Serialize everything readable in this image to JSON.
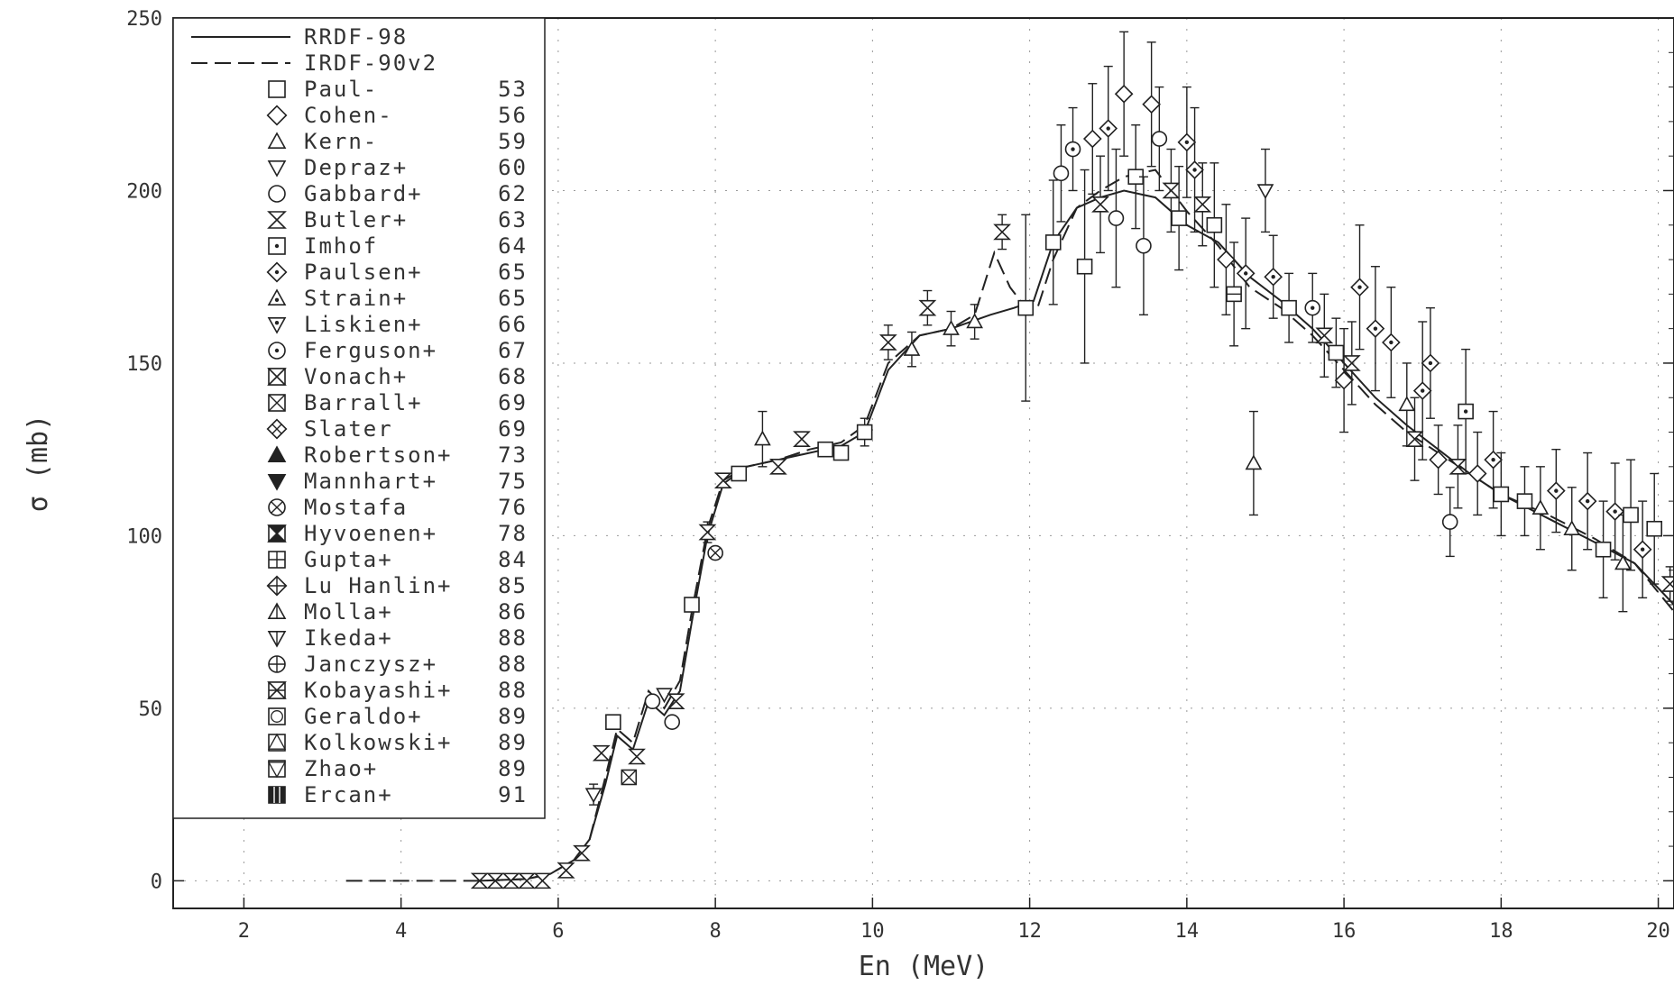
{
  "chart_data": {
    "type": "scatter",
    "xlabel": "En (MeV)",
    "ylabel": "σ (mb)",
    "xlim": [
      1.1,
      20.2
    ],
    "ylim": [
      -8,
      250
    ],
    "x_ticks": [
      2,
      4,
      6,
      8,
      10,
      12,
      14,
      16,
      18,
      20
    ],
    "y_ticks": [
      0,
      50,
      100,
      150,
      200,
      250
    ],
    "x_tick_labels": [
      "2",
      "4",
      "6",
      "8",
      "10",
      "12",
      "14",
      "16",
      "18",
      "20"
    ],
    "y_tick_labels": [
      "0",
      "50",
      "100",
      "150",
      "200",
      "250"
    ],
    "grid": "dotted",
    "legend_position": "top-left",
    "curves": [
      {
        "name": "RRDF-98",
        "style": "solid",
        "x": [
          5.0,
          5.6,
          5.9,
          6.2,
          6.4,
          6.6,
          6.75,
          6.95,
          7.15,
          7.35,
          7.55,
          7.7,
          7.9,
          8.1,
          8.4,
          8.8,
          9.2,
          9.6,
          9.9,
          10.2,
          10.6,
          11.0,
          11.5,
          11.8,
          12.05,
          12.3,
          12.6,
          12.9,
          13.2,
          13.6,
          14.0,
          14.4,
          14.8,
          15.2,
          15.6,
          16.0,
          16.4,
          16.8,
          17.2,
          17.6,
          18.0,
          18.6,
          19.2,
          19.7,
          20.2
        ],
        "y": [
          0,
          0.5,
          2,
          6,
          12,
          28,
          42,
          38,
          52,
          48,
          55,
          75,
          100,
          115,
          120,
          122,
          124,
          126,
          130,
          148,
          158,
          160,
          164,
          166,
          168,
          185,
          195,
          198,
          200,
          198,
          190,
          185,
          175,
          168,
          160,
          150,
          140,
          132,
          125,
          118,
          112,
          105,
          98,
          92,
          80
        ]
      },
      {
        "name": "IRDF-90v2",
        "style": "dashed",
        "x": [
          3.3,
          5.0,
          5.6,
          5.9,
          6.2,
          6.4,
          6.6,
          6.75,
          6.95,
          7.15,
          7.35,
          7.55,
          7.7,
          7.9,
          8.1,
          8.4,
          8.8,
          9.2,
          9.6,
          9.9,
          10.2,
          10.6,
          11.0,
          11.3,
          11.55,
          11.75,
          11.95,
          12.1,
          12.3,
          12.6,
          12.9,
          13.2,
          13.6,
          14.0,
          14.4,
          14.8,
          15.2,
          15.6,
          16.0,
          16.4,
          16.8,
          17.2,
          17.6,
          18.0,
          18.6,
          19.2,
          19.7,
          20.2
        ],
        "y": [
          0,
          0,
          0.5,
          2,
          6,
          12,
          30,
          44,
          40,
          55,
          50,
          58,
          78,
          102,
          116,
          120,
          122,
          125,
          127,
          132,
          150,
          158,
          160,
          164,
          182,
          172,
          166,
          166,
          180,
          195,
          200,
          204,
          206,
          194,
          184,
          172,
          166,
          158,
          148,
          138,
          130,
          124,
          118,
          112,
          106,
          99,
          92,
          78
        ]
      }
    ],
    "markers": [
      {
        "x": 5.0,
        "y": 0,
        "symbol": "bowtie"
      },
      {
        "x": 5.2,
        "y": 0,
        "symbol": "bowtie"
      },
      {
        "x": 5.4,
        "y": 0,
        "symbol": "bowtie"
      },
      {
        "x": 5.6,
        "y": 0,
        "symbol": "bowtie"
      },
      {
        "x": 5.8,
        "y": 0,
        "symbol": "bowtie"
      },
      {
        "x": 6.1,
        "y": 3,
        "symbol": "bowtie"
      },
      {
        "x": 6.3,
        "y": 8,
        "symbol": "bowtie"
      },
      {
        "x": 6.45,
        "y": 25,
        "symbol": "triangle-down",
        "err": 3
      },
      {
        "x": 6.55,
        "y": 37,
        "symbol": "bowtie"
      },
      {
        "x": 6.7,
        "y": 46,
        "symbol": "square"
      },
      {
        "x": 6.9,
        "y": 30,
        "symbol": "square-cross"
      },
      {
        "x": 7.0,
        "y": 36,
        "symbol": "bowtie"
      },
      {
        "x": 7.2,
        "y": 52,
        "symbol": "circle"
      },
      {
        "x": 7.35,
        "y": 54,
        "symbol": "triangle-down"
      },
      {
        "x": 7.45,
        "y": 46,
        "symbol": "circle"
      },
      {
        "x": 7.5,
        "y": 52,
        "symbol": "bowtie"
      },
      {
        "x": 7.7,
        "y": 80,
        "symbol": "square"
      },
      {
        "x": 7.9,
        "y": 101,
        "symbol": "bowtie",
        "err": 3
      },
      {
        "x": 8.0,
        "y": 95,
        "symbol": "circle-cross"
      },
      {
        "x": 8.1,
        "y": 116,
        "symbol": "bowtie"
      },
      {
        "x": 8.3,
        "y": 118,
        "symbol": "square"
      },
      {
        "x": 8.6,
        "y": 128,
        "symbol": "triangle",
        "err": 8
      },
      {
        "x": 8.8,
        "y": 120,
        "symbol": "bowtie"
      },
      {
        "x": 9.1,
        "y": 128,
        "symbol": "bowtie"
      },
      {
        "x": 9.4,
        "y": 125,
        "symbol": "square"
      },
      {
        "x": 9.6,
        "y": 124,
        "symbol": "square"
      },
      {
        "x": 9.9,
        "y": 130,
        "symbol": "square",
        "err": 4
      },
      {
        "x": 10.2,
        "y": 156,
        "symbol": "bowtie",
        "err": 5
      },
      {
        "x": 10.5,
        "y": 154,
        "symbol": "triangle",
        "err": 5
      },
      {
        "x": 10.7,
        "y": 166,
        "symbol": "bowtie",
        "err": 5
      },
      {
        "x": 11.0,
        "y": 160,
        "symbol": "triangle",
        "err": 5
      },
      {
        "x": 11.3,
        "y": 162,
        "symbol": "triangle",
        "err": 5
      },
      {
        "x": 11.65,
        "y": 188,
        "symbol": "bowtie",
        "err": 5
      },
      {
        "x": 11.95,
        "y": 166,
        "symbol": "square",
        "err": 27
      },
      {
        "x": 12.3,
        "y": 185,
        "symbol": "square",
        "err": 18
      },
      {
        "x": 12.4,
        "y": 205,
        "symbol": "circle",
        "err": 14
      },
      {
        "x": 12.55,
        "y": 212,
        "symbol": "circle-dot",
        "err": 12
      },
      {
        "x": 12.7,
        "y": 178,
        "symbol": "square",
        "err": 28
      },
      {
        "x": 12.8,
        "y": 215,
        "symbol": "diamond",
        "err": 16
      },
      {
        "x": 12.9,
        "y": 196,
        "symbol": "bowtie",
        "err": 14
      },
      {
        "x": 13.0,
        "y": 218,
        "symbol": "diamond-dot",
        "err": 18
      },
      {
        "x": 13.1,
        "y": 192,
        "symbol": "circle",
        "err": 20
      },
      {
        "x": 13.2,
        "y": 228,
        "symbol": "diamond",
        "err": 18
      },
      {
        "x": 13.35,
        "y": 204,
        "symbol": "square",
        "err": 15
      },
      {
        "x": 13.45,
        "y": 184,
        "symbol": "circle",
        "err": 20
      },
      {
        "x": 13.55,
        "y": 225,
        "symbol": "diamond",
        "err": 18
      },
      {
        "x": 13.65,
        "y": 215,
        "symbol": "circle",
        "err": 15
      },
      {
        "x": 13.8,
        "y": 200,
        "symbol": "bowtie",
        "err": 12
      },
      {
        "x": 13.9,
        "y": 192,
        "symbol": "square",
        "err": 15
      },
      {
        "x": 14.0,
        "y": 214,
        "symbol": "diamond-dot",
        "err": 16
      },
      {
        "x": 14.1,
        "y": 206,
        "symbol": "diamond-dot",
        "err": 18
      },
      {
        "x": 14.2,
        "y": 196,
        "symbol": "bowtie",
        "err": 12
      },
      {
        "x": 14.35,
        "y": 190,
        "symbol": "square",
        "err": 18
      },
      {
        "x": 14.5,
        "y": 180,
        "symbol": "diamond",
        "err": 16
      },
      {
        "x": 14.6,
        "y": 170,
        "symbol": "square-dash",
        "err": 15
      },
      {
        "x": 14.75,
        "y": 176,
        "symbol": "diamond-dot",
        "err": 16
      },
      {
        "x": 14.85,
        "y": 121,
        "symbol": "triangle",
        "err": 15
      },
      {
        "x": 15.0,
        "y": 200,
        "symbol": "triangle-down",
        "err": 12
      },
      {
        "x": 15.1,
        "y": 175,
        "symbol": "diamond-dot",
        "err": 12
      },
      {
        "x": 15.3,
        "y": 166,
        "symbol": "square",
        "err": 10
      },
      {
        "x": 15.6,
        "y": 166,
        "symbol": "circle-dot",
        "err": 10
      },
      {
        "x": 15.75,
        "y": 158,
        "symbol": "bowtie",
        "err": 12
      },
      {
        "x": 15.9,
        "y": 153,
        "symbol": "square",
        "err": 10
      },
      {
        "x": 16.0,
        "y": 145,
        "symbol": "diamond",
        "err": 15
      },
      {
        "x": 16.1,
        "y": 150,
        "symbol": "bowtie",
        "err": 12
      },
      {
        "x": 16.2,
        "y": 172,
        "symbol": "diamond-dot",
        "err": 18
      },
      {
        "x": 16.4,
        "y": 160,
        "symbol": "diamond-dot",
        "err": 18
      },
      {
        "x": 16.6,
        "y": 156,
        "symbol": "diamond-dot",
        "err": 16
      },
      {
        "x": 16.8,
        "y": 138,
        "symbol": "triangle",
        "err": 12
      },
      {
        "x": 16.9,
        "y": 128,
        "symbol": "bowtie",
        "err": 12
      },
      {
        "x": 17.0,
        "y": 142,
        "symbol": "diamond-dot",
        "err": 20
      },
      {
        "x": 17.1,
        "y": 150,
        "symbol": "diamond-dot",
        "err": 16
      },
      {
        "x": 17.2,
        "y": 122,
        "symbol": "diamond",
        "err": 10
      },
      {
        "x": 17.35,
        "y": 104,
        "symbol": "circle",
        "err": 10
      },
      {
        "x": 17.45,
        "y": 120,
        "symbol": "bowtie",
        "err": 12
      },
      {
        "x": 17.55,
        "y": 136,
        "symbol": "square-dot",
        "err": 18
      },
      {
        "x": 17.7,
        "y": 118,
        "symbol": "diamond",
        "err": 12
      },
      {
        "x": 17.9,
        "y": 122,
        "symbol": "diamond-dot",
        "err": 14
      },
      {
        "x": 18.0,
        "y": 112,
        "symbol": "square",
        "err": 12
      },
      {
        "x": 18.3,
        "y": 110,
        "symbol": "square",
        "err": 10
      },
      {
        "x": 18.5,
        "y": 108,
        "symbol": "triangle",
        "err": 12
      },
      {
        "x": 18.7,
        "y": 113,
        "symbol": "diamond-dot",
        "err": 12
      },
      {
        "x": 18.9,
        "y": 102,
        "symbol": "triangle",
        "err": 12
      },
      {
        "x": 19.1,
        "y": 110,
        "symbol": "diamond-dot",
        "err": 14
      },
      {
        "x": 19.3,
        "y": 96,
        "symbol": "square",
        "err": 14
      },
      {
        "x": 19.45,
        "y": 107,
        "symbol": "diamond-dot",
        "err": 14
      },
      {
        "x": 19.55,
        "y": 92,
        "symbol": "triangle",
        "err": 14
      },
      {
        "x": 19.65,
        "y": 106,
        "symbol": "square",
        "err": 16
      },
      {
        "x": 19.8,
        "y": 96,
        "symbol": "diamond-dot",
        "err": 14
      },
      {
        "x": 19.95,
        "y": 102,
        "symbol": "square",
        "err": 16
      },
      {
        "x": 20.15,
        "y": 86,
        "symbol": "bowtie",
        "err": 5
      },
      {
        "x": 20.55,
        "y": 77,
        "symbol": "bowtie",
        "err": 5
      }
    ],
    "legend": [
      {
        "line": "solid",
        "label": "RRDF-98"
      },
      {
        "line": "dashed",
        "label": "IRDF-90v2"
      },
      {
        "symbol": "square",
        "label": "Paul-",
        "year": "53"
      },
      {
        "symbol": "diamond",
        "label": "Cohen-",
        "year": "56"
      },
      {
        "symbol": "triangle",
        "label": "Kern-",
        "year": "59"
      },
      {
        "symbol": "triangle-down",
        "label": "Depraz+",
        "year": "60"
      },
      {
        "symbol": "circle",
        "label": "Gabbard+",
        "year": "62"
      },
      {
        "symbol": "bowtie",
        "label": "Butler+",
        "year": "63"
      },
      {
        "symbol": "square-dot",
        "label": "Imhof",
        "year": "64"
      },
      {
        "symbol": "diamond-dot",
        "label": "Paulsen+",
        "year": "65"
      },
      {
        "symbol": "triangle-dot",
        "label": "Strain+",
        "year": "65"
      },
      {
        "symbol": "triangle-down-dot",
        "label": "Liskien+",
        "year": "66"
      },
      {
        "symbol": "circle-dot",
        "label": "Ferguson+",
        "year": "67"
      },
      {
        "symbol": "bowtie-box",
        "label": "Vonach+",
        "year": "68"
      },
      {
        "symbol": "square-cross",
        "label": "Barrall+",
        "year": "69"
      },
      {
        "symbol": "diamond-cross",
        "label": "Slater",
        "year": "69"
      },
      {
        "symbol": "triangle-fill",
        "label": "Robertson+",
        "year": "73"
      },
      {
        "symbol": "triangle-down-fill",
        "label": "Mannhart+",
        "year": "75"
      },
      {
        "symbol": "circle-cross",
        "label": "Mostafa",
        "year": "76"
      },
      {
        "symbol": "bowtie-fill",
        "label": "Hyvoenen+",
        "year": "78"
      },
      {
        "symbol": "square-plus",
        "label": "Gupta+",
        "year": "84"
      },
      {
        "symbol": "diamond-plus",
        "label": "Lu Hanlin+",
        "year": "85"
      },
      {
        "symbol": "triangle-line",
        "label": "Molla+",
        "year": "86"
      },
      {
        "symbol": "triangle-down-line",
        "label": "Ikeda+",
        "year": "88"
      },
      {
        "symbol": "circle-plus",
        "label": "Janczysz+",
        "year": "88"
      },
      {
        "symbol": "bowtie-star",
        "label": "Kobayashi+",
        "year": "88"
      },
      {
        "symbol": "square-circle",
        "label": "Geraldo+",
        "year": "89"
      },
      {
        "symbol": "square-triangle",
        "label": "Kolkowski+",
        "year": "89"
      },
      {
        "symbol": "square-triangle-down",
        "label": "Zhao+",
        "year": "89"
      },
      {
        "symbol": "square-grid",
        "label": "Ercan+",
        "year": "91"
      }
    ],
    "colors": {
      "ink": "#222222",
      "grid": "#999999",
      "background": "#ffffff"
    }
  }
}
